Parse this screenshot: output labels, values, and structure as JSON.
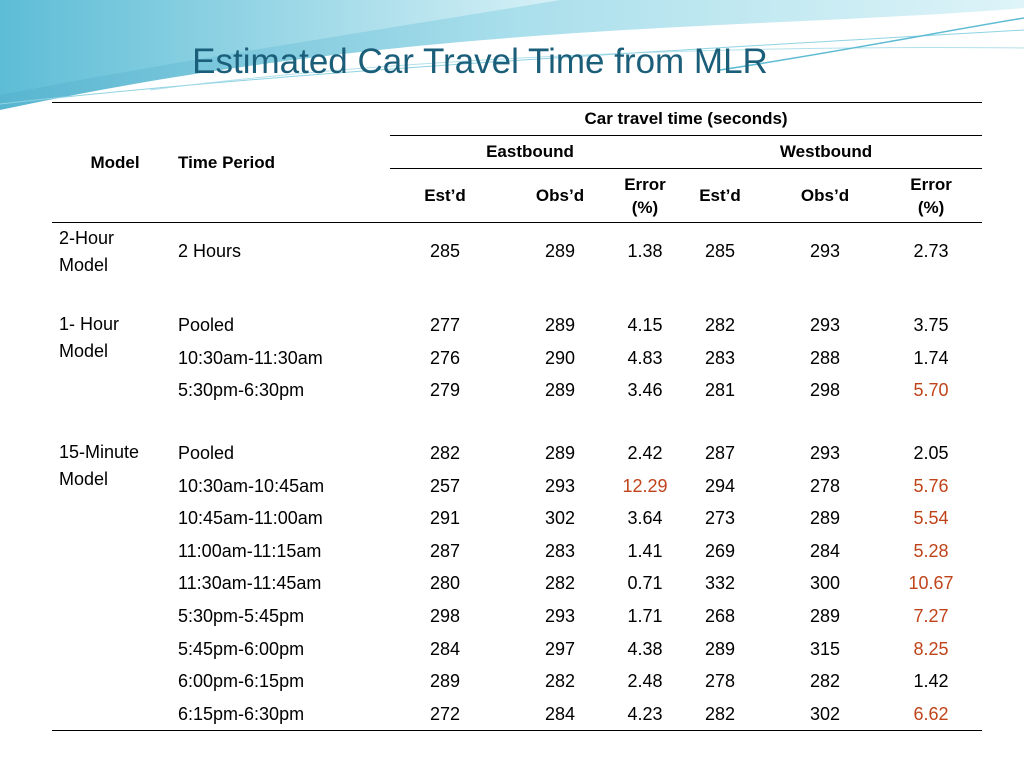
{
  "title": "Estimated Car Travel Time from MLR",
  "header": {
    "model": "Model",
    "time_period": "Time Period",
    "group": "Car travel time (seconds)",
    "eastbound": "Eastbound",
    "westbound": "Westbound",
    "estd": "Est’d",
    "obsd": "Obs’d",
    "error_line1": "Error",
    "error_line2": "(%)"
  },
  "groups": [
    {
      "model_line1": "2-Hour",
      "model_line2": "Model",
      "rows": [
        {
          "period": "2 Hours",
          "e_est": "285",
          "e_obs": "289",
          "e_err": "1.38",
          "w_est": "285",
          "w_obs": "293",
          "w_err": "2.73"
        }
      ]
    },
    {
      "model_line1": "1- Hour",
      "model_line2": "Model",
      "rows": [
        {
          "period": "Pooled",
          "e_est": "277",
          "e_obs": "289",
          "e_err": "4.15",
          "w_est": "282",
          "w_obs": "293",
          "w_err": "3.75"
        },
        {
          "period": "10:30am-11:30am",
          "e_est": "276",
          "e_obs": "290",
          "e_err": "4.83",
          "w_est": "283",
          "w_obs": "288",
          "w_err": "1.74"
        },
        {
          "period": "5:30pm-6:30pm",
          "e_est": "279",
          "e_obs": "289",
          "e_err": "3.46",
          "w_est": "281",
          "w_obs": "298",
          "w_err": "5.70"
        }
      ]
    },
    {
      "model_line1": "15-Minute",
      "model_line2": "Model",
      "rows": [
        {
          "period": "Pooled",
          "e_est": "282",
          "e_obs": "289",
          "e_err": "2.42",
          "w_est": "287",
          "w_obs": "293",
          "w_err": "2.05"
        },
        {
          "period": "10:30am-10:45am",
          "e_est": "257",
          "e_obs": "293",
          "e_err": "12.29",
          "w_est": "294",
          "w_obs": "278",
          "w_err": "5.76"
        },
        {
          "period": "10:45am-11:00am",
          "e_est": "291",
          "e_obs": "302",
          "e_err": "3.64",
          "w_est": "273",
          "w_obs": "289",
          "w_err": "5.54"
        },
        {
          "period": "11:00am-11:15am",
          "e_est": "287",
          "e_obs": "283",
          "e_err": "1.41",
          "w_est": "269",
          "w_obs": "284",
          "w_err": "5.28"
        },
        {
          "period": "11:30am-11:45am",
          "e_est": "280",
          "e_obs": "282",
          "e_err": "0.71",
          "w_est": "332",
          "w_obs": "300",
          "w_err": "10.67"
        },
        {
          "period": "5:30pm-5:45pm",
          "e_est": "298",
          "e_obs": "293",
          "e_err": "1.71",
          "w_est": "268",
          "w_obs": "289",
          "w_err": "7.27"
        },
        {
          "period": "5:45pm-6:00pm",
          "e_est": "284",
          "e_obs": "297",
          "e_err": "4.38",
          "w_est": "289",
          "w_obs": "315",
          "w_err": "8.25"
        },
        {
          "period": "6:00pm-6:15pm",
          "e_est": "289",
          "e_obs": "282",
          "e_err": "2.48",
          "w_est": "278",
          "w_obs": "282",
          "w_err": "1.42"
        },
        {
          "period": "6:15pm-6:30pm",
          "e_est": "272",
          "e_obs": "284",
          "e_err": "4.23",
          "w_est": "282",
          "w_obs": "302",
          "w_err": "6.62"
        }
      ]
    }
  ],
  "colors": {
    "title": "#1b5e7a",
    "highlight": "#c0441b",
    "swoosh_dark": "#3aa8c8",
    "swoosh_light": "#bfe9f2"
  },
  "highlight_threshold": 5.0
}
